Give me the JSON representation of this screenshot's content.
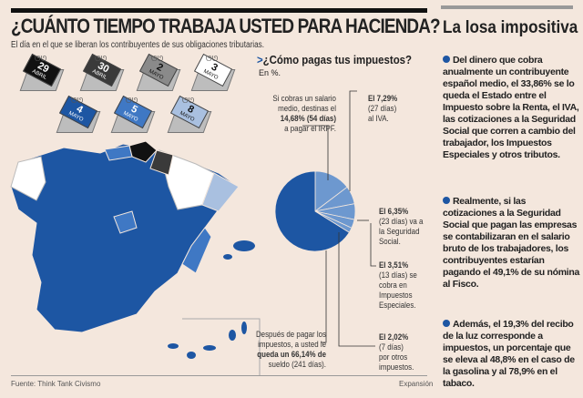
{
  "header": {
    "title": "¿CUÁNTO TIEMPO TRABAJA USTED PARA HACIENDA?",
    "subtitle": "El día en el que se liberan los contribuyentes de sus obligaciones tributarias."
  },
  "calendars": [
    {
      "day": "29",
      "month": "ABRIL",
      "color": "#111111"
    },
    {
      "day": "30",
      "month": "ABRIL",
      "color": "#3a3a3a"
    },
    {
      "day": "2",
      "month": "MAYO",
      "color": "#8a8a8a"
    },
    {
      "day": "3",
      "month": "MAYO",
      "color": "#ffffff"
    },
    {
      "day": "4",
      "month": "MAYO",
      "color": "#1d56a3"
    },
    {
      "day": "5",
      "month": "MAYO",
      "color": "#3f78c4"
    },
    {
      "day": "8",
      "month": "MAYO",
      "color": "#a9c0e0"
    }
  ],
  "chart_data": {
    "type": "pie",
    "title": "¿Cómo pagas tus impuestos?",
    "subtitle": "En %.",
    "slices": [
      {
        "label": "IRPF",
        "value": 14.68,
        "days": 54,
        "color": "#6d98cf"
      },
      {
        "label": "IVA",
        "value": 7.29,
        "days": 27,
        "color": "#6d98cf"
      },
      {
        "label": "Seguridad Social",
        "value": 6.35,
        "days": 23,
        "color": "#6d98cf"
      },
      {
        "label": "Impuestos Especiales",
        "value": 3.51,
        "days": 13,
        "color": "#6d98cf"
      },
      {
        "label": "Otros impuestos",
        "value": 2.02,
        "days": 7,
        "color": "#6d98cf"
      },
      {
        "label": "Sueldo restante",
        "value": 66.14,
        "days": 241,
        "color": "#1d56a3"
      }
    ],
    "annotations": {
      "irpf": [
        "Si cobras un salario",
        "medio, destinas el",
        "14,68% (54 días)",
        "a pagar el IRPF."
      ],
      "iva": [
        "El 7,29%",
        "(27 días)",
        "al IVA."
      ],
      "ss": [
        "El 6,35%",
        "(23 días) va a",
        "la Seguridad",
        "Social."
      ],
      "ie": [
        "El 3,51%",
        "(13 días) se",
        "cobra en",
        "Impuestos",
        "Especiales."
      ],
      "otros": [
        "El 2,02%",
        "(7 días)",
        "por otros",
        "impuestos."
      ],
      "resto": [
        "Después de pagar los",
        "impuestos, a usted le",
        "queda un 66,14% de",
        "sueldo (241 días)."
      ]
    }
  },
  "footer": {
    "source": "Fuente: Think Tank Civismo",
    "brand": "Expansión"
  },
  "sidebar": {
    "title": "La losa impositiva",
    "paragraphs": [
      "Del dinero que cobra anualmente un contribuyente español medio, el 33,86% se lo queda el Estado entre el Impuesto sobre la Renta, el IVA, las cotizaciones a la Seguridad Social que corren a cambio del trabajador, los Impuestos Especiales y otros tributos.",
      "Realmente, si las cotizaciones a la Seguridad Social que pagan las empresas se contabilizaran en el salario bruto de los trabajadores, los contribuyentes estarían pagando el 49,1% de su nómina al Fisco.",
      "Además, el 19,3% del recibo de la luz corresponde a impuestos, un porcentaje que se eleva al 48,8% en el caso de la gasolina y al 78,9% en el tabaco."
    ]
  },
  "colors": {
    "background": "#f4e7dd",
    "accent": "#1d56a3",
    "light": "#6d98cf"
  }
}
